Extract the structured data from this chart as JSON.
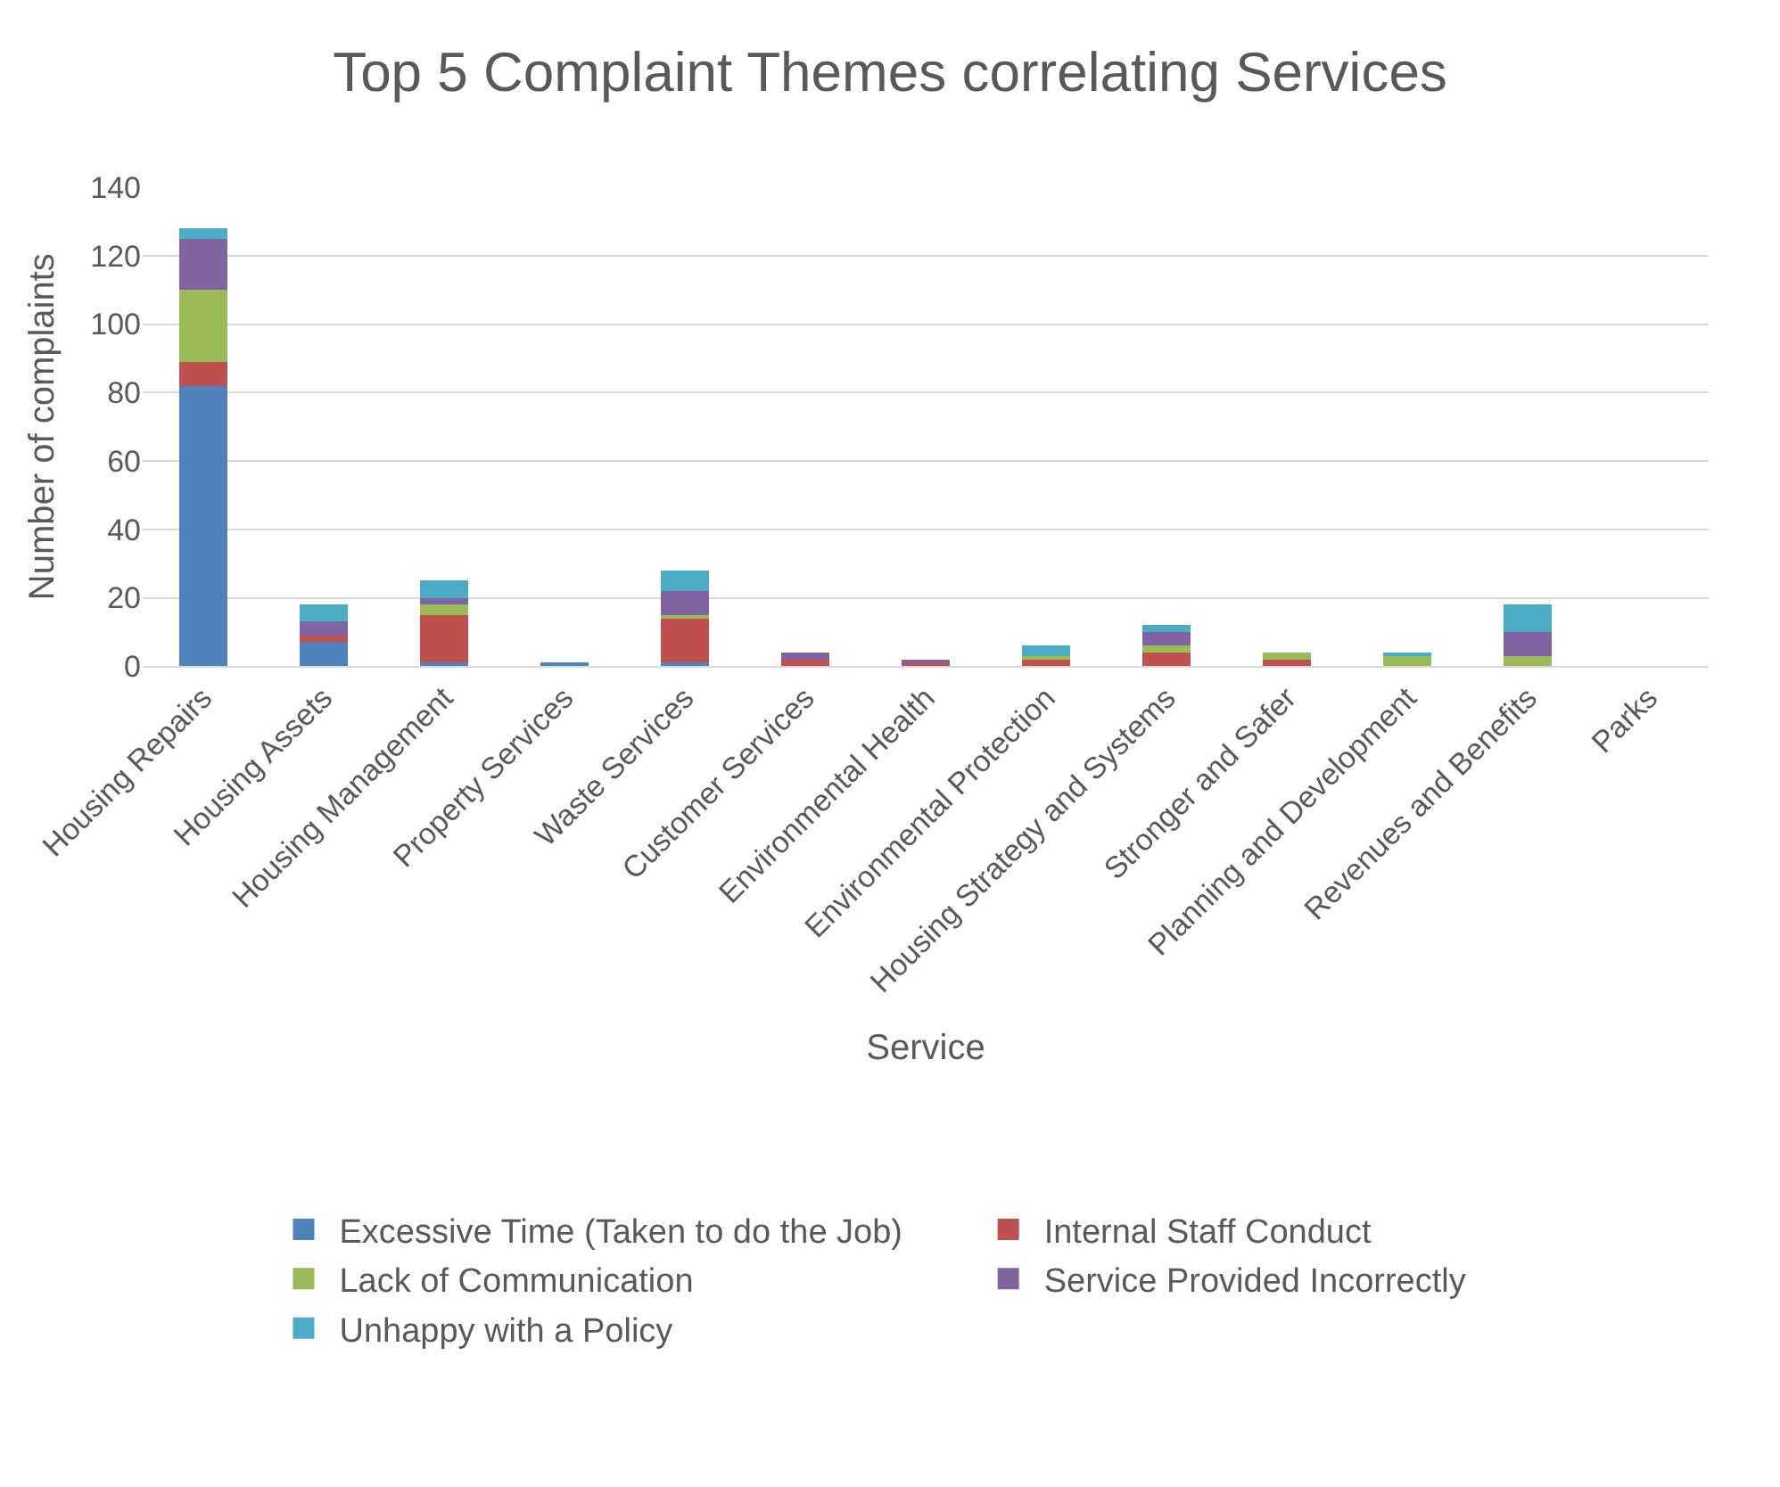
{
  "chart_data": {
    "type": "bar",
    "title": "Top 5 Complaint Themes correlating Services",
    "xlabel": "Service",
    "ylabel": "Number of complaints",
    "categories": [
      "Housing Repairs",
      "Housing Assets",
      "Housing Management",
      "Property Services",
      "Waste Services",
      "Customer Services",
      "Environmental Health",
      "Environmental Protection",
      "Housing Strategy and Systems",
      "Stronger and Safer",
      "Planning and Development",
      "Revenues and Benefits",
      "Parks"
    ],
    "stacked": true,
    "series": [
      {
        "name": "Excessive Time (Taken to do the Job)",
        "color": "#4f81bd",
        "values": [
          82,
          7,
          1,
          1,
          1,
          0,
          0,
          0,
          0,
          0,
          0,
          0,
          0
        ]
      },
      {
        "name": "Internal Staff Conduct",
        "color": "#c0504d",
        "values": [
          7,
          2,
          14,
          0,
          13,
          2,
          1,
          2,
          4,
          2,
          0,
          0,
          0
        ]
      },
      {
        "name": "Lack of Communication",
        "color": "#9bbb59",
        "values": [
          21,
          0,
          3,
          0,
          1,
          0,
          0,
          1,
          2,
          2,
          3,
          3,
          0
        ]
      },
      {
        "name": "Service Provided Incorrectly",
        "color": "#8064a2",
        "values": [
          15,
          4,
          2,
          0,
          7,
          2,
          1,
          0,
          4,
          0,
          0,
          7,
          0
        ]
      },
      {
        "name": "Unhappy with a Policy",
        "color": "#4bacc6",
        "values": [
          3,
          5,
          5,
          0,
          6,
          0,
          0,
          3,
          2,
          0,
          1,
          8,
          0
        ]
      }
    ],
    "ylim": [
      0,
      140
    ],
    "yticks": [
      0,
      20,
      40,
      60,
      80,
      100,
      120,
      140
    ],
    "grid": "y",
    "legend": "bottom"
  }
}
